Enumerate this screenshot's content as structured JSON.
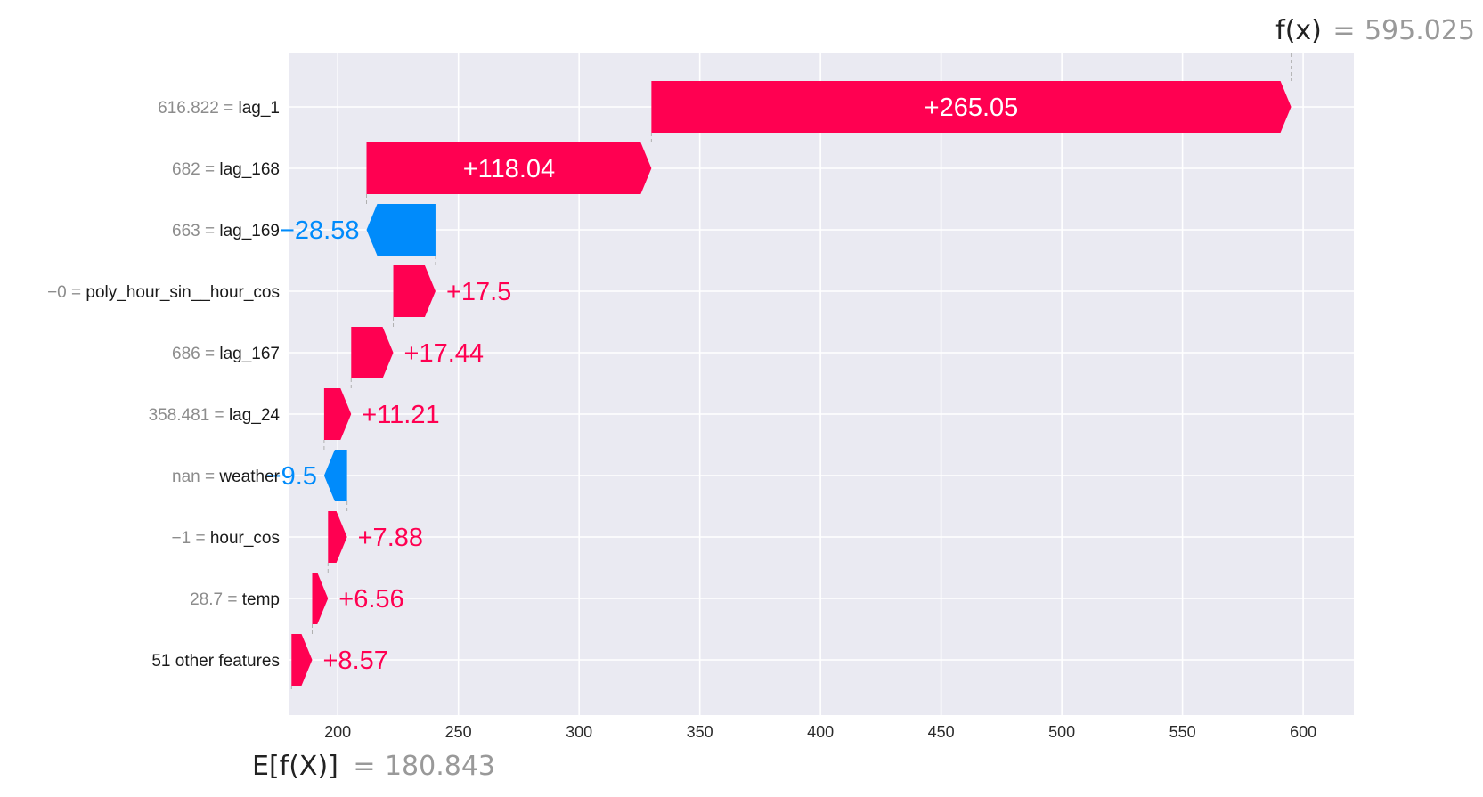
{
  "chart_data": {
    "type": "waterfall",
    "xlim": [
      180,
      621
    ],
    "xticks": [
      200,
      250,
      300,
      350,
      400,
      450,
      500,
      550,
      600
    ],
    "grid": true,
    "base_value": 180.843,
    "base_value_label": "180.843",
    "base_symbol": "E[f(X)]",
    "output_value": 595.025,
    "output_value_label": "595.025",
    "output_symbol": "f(x)",
    "colors": {
      "positive": "#ff0051",
      "negative": "#008bfb",
      "background": "#eaeaf2"
    },
    "features": [
      {
        "value": "616.822",
        "name": "lag_1",
        "shap": 265.05,
        "label": "+265.05"
      },
      {
        "value": "682",
        "name": "lag_168",
        "shap": 118.04,
        "label": "+118.04"
      },
      {
        "value": "663",
        "name": "lag_169",
        "shap": -28.58,
        "label": "−28.58"
      },
      {
        "value": "−0",
        "name": "poly_hour_sin__hour_cos",
        "shap": 17.5,
        "label": "+17.5"
      },
      {
        "value": "686",
        "name": "lag_167",
        "shap": 17.44,
        "label": "+17.44"
      },
      {
        "value": "358.481",
        "name": "lag_24",
        "shap": 11.21,
        "label": "+11.21"
      },
      {
        "value": "nan",
        "name": "weather",
        "shap": -9.5,
        "label": "−9.5"
      },
      {
        "value": "−1",
        "name": "hour_cos",
        "shap": 7.88,
        "label": "+7.88"
      },
      {
        "value": "28.7",
        "name": "temp",
        "shap": 6.56,
        "label": "+6.56"
      },
      {
        "value": "",
        "name": "51 other features",
        "shap": 8.57,
        "label": "+8.57"
      }
    ]
  }
}
